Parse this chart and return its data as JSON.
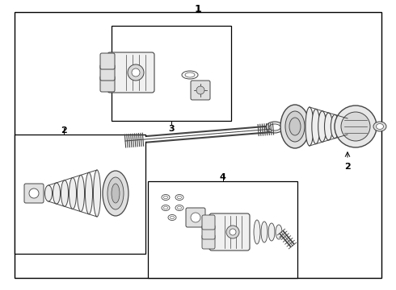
{
  "bg_color": "#ffffff",
  "border_color": "#000000",
  "line_color": "#444444",
  "label_1": "1",
  "label_2": "2",
  "label_3": "3",
  "label_4": "4",
  "figsize": [
    4.9,
    3.6
  ],
  "dpi": 100
}
